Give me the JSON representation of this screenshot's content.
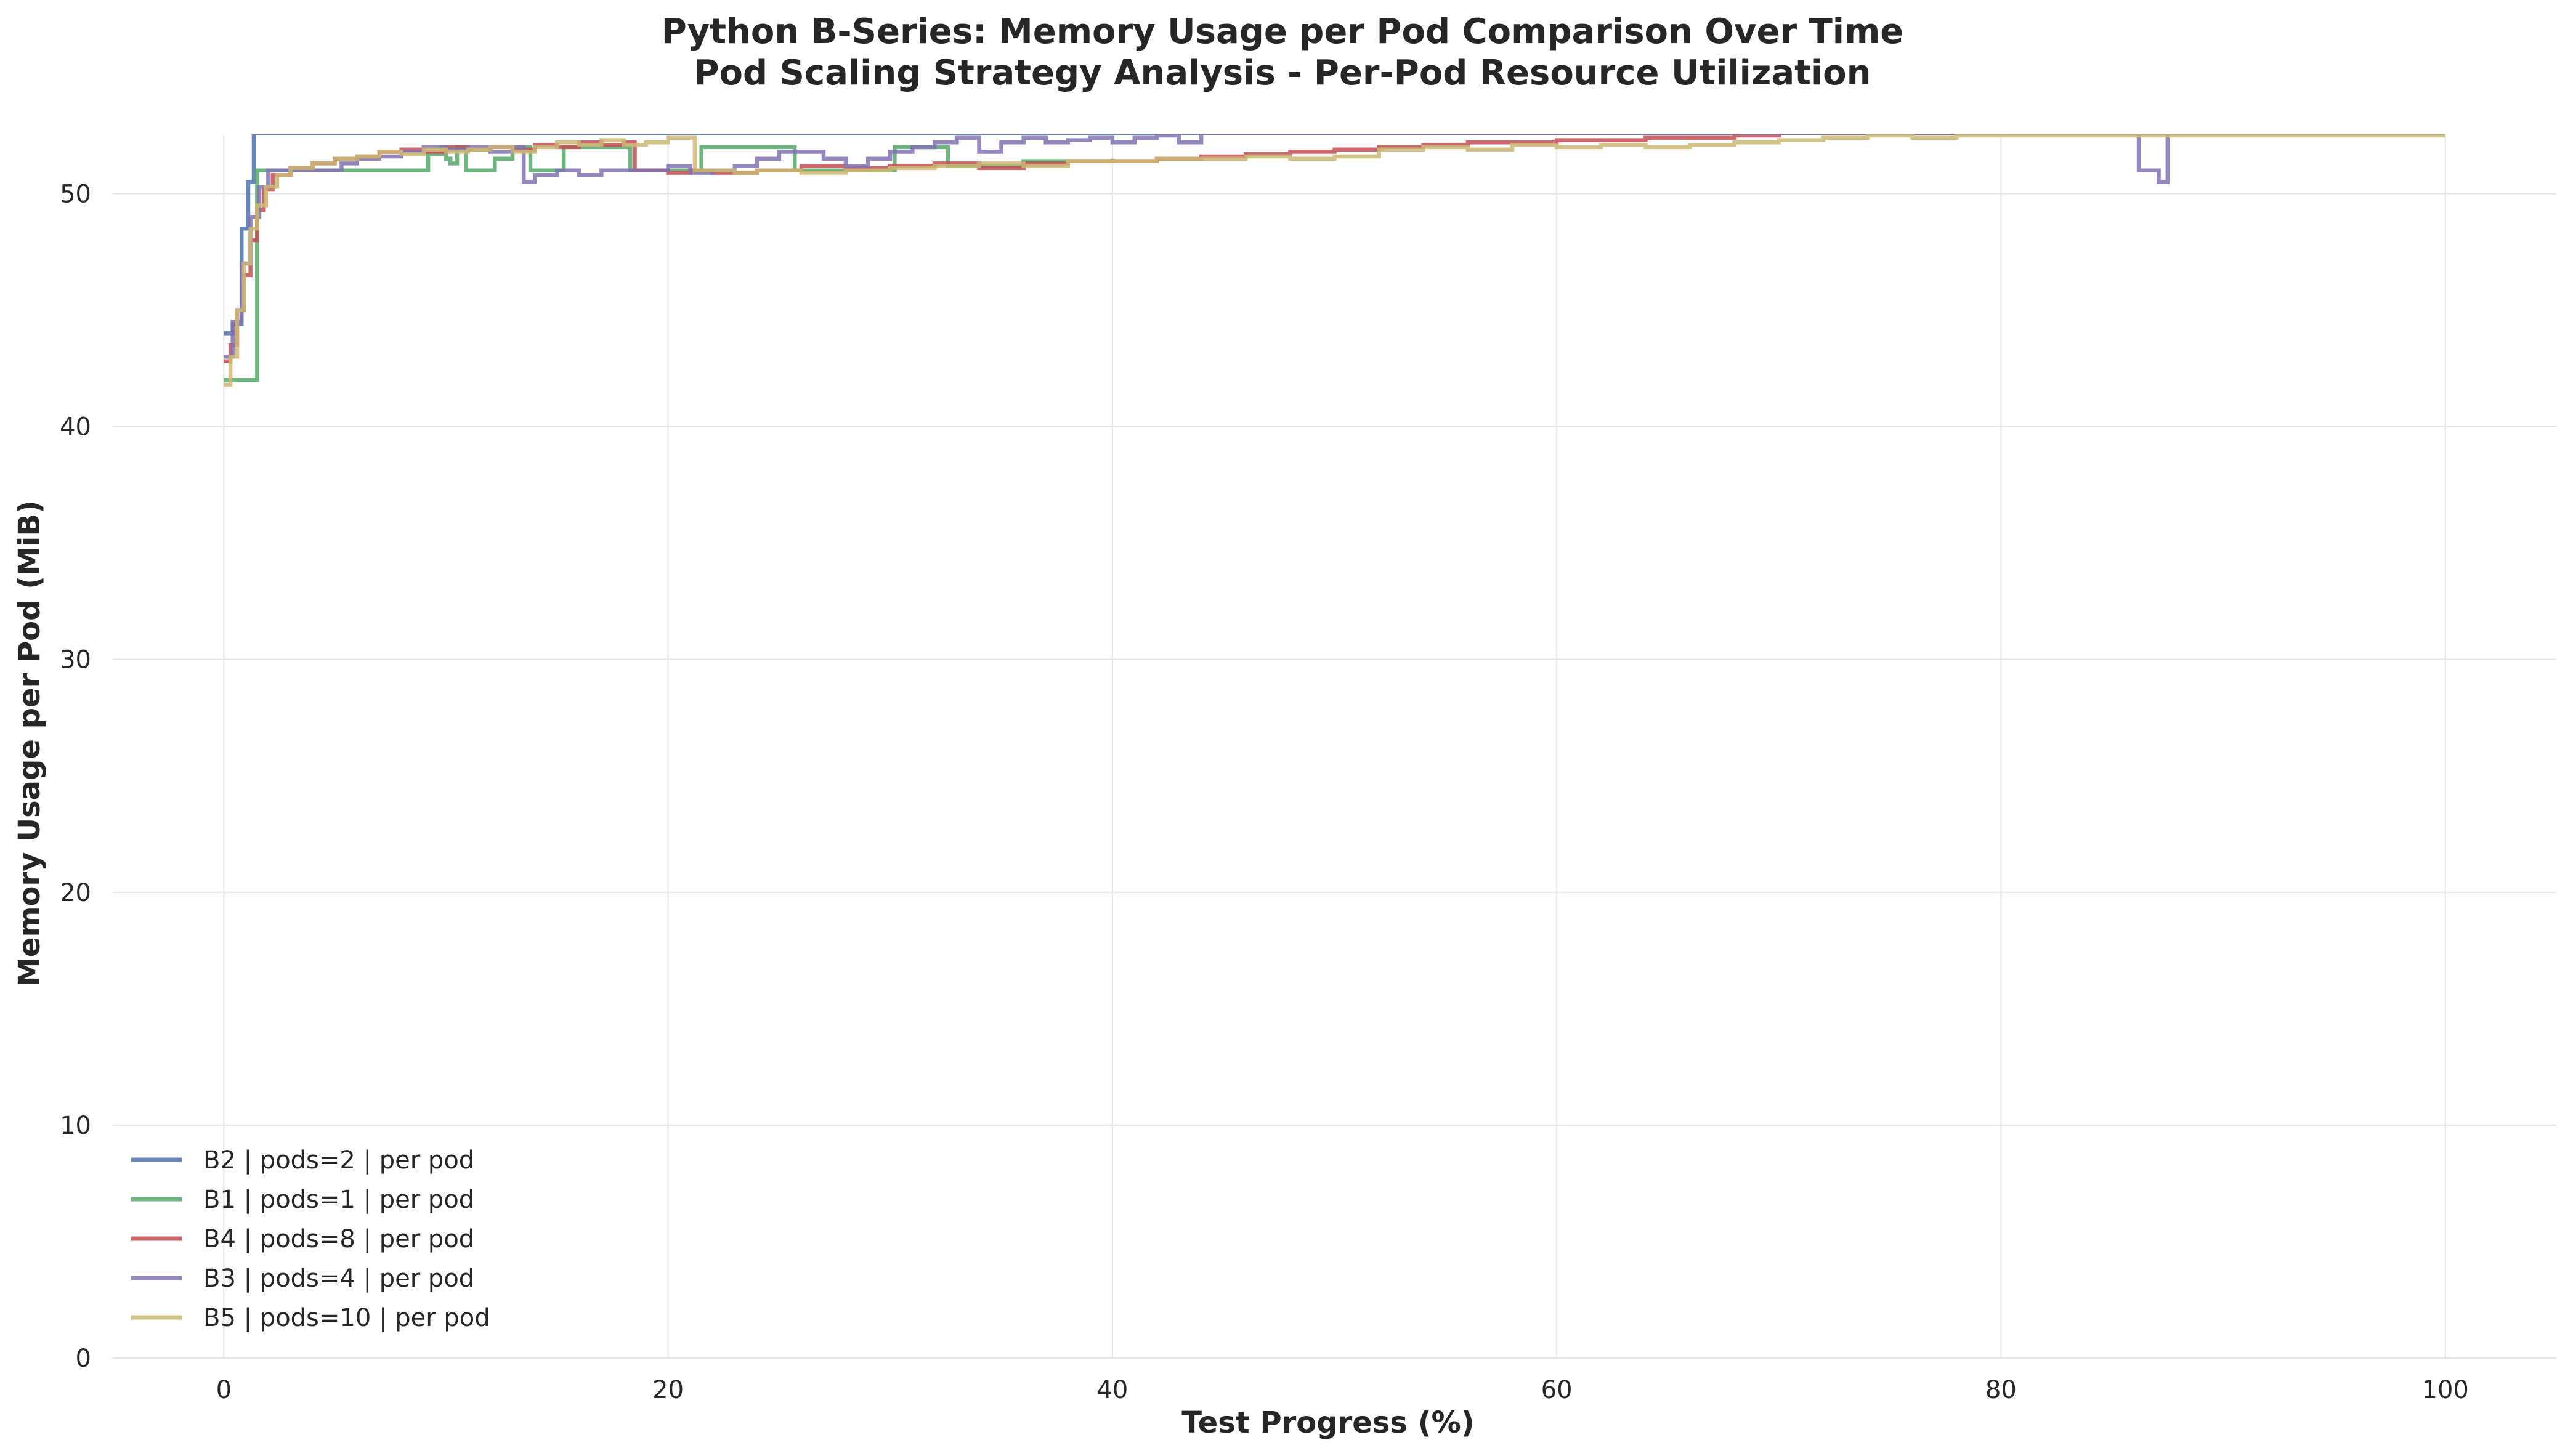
{
  "chart_data": {
    "type": "line",
    "title": "Python B-Series: Memory Usage per Pod Comparison Over Time",
    "subtitle": "Pod Scaling Strategy Analysis - Per-Pod Resource Utilization",
    "xlabel": "Test Progress (%)",
    "ylabel": "Memory Usage per Pod (MiB)",
    "xlim": [
      -5,
      105
    ],
    "ylim": [
      0,
      52.5
    ],
    "xticks": [
      0,
      20,
      40,
      60,
      80,
      100
    ],
    "yticks": [
      0,
      10,
      20,
      30,
      40,
      50
    ],
    "grid": true,
    "legend_position": "lower-left",
    "step_lines": true,
    "series": [
      {
        "name": "B2 | pods=2 | per pod",
        "color": "#4c72b0",
        "points": [
          [
            0,
            44
          ],
          [
            0.4,
            44.4
          ],
          [
            0.8,
            48.5
          ],
          [
            1.1,
            50.5
          ],
          [
            1.35,
            52.6
          ],
          [
            100,
            52.6
          ]
        ]
      },
      {
        "name": "B1 | pods=1 | per pod",
        "color": "#55a868",
        "points": [
          [
            0,
            42
          ],
          [
            1.4,
            42
          ],
          [
            1.5,
            51
          ],
          [
            8.5,
            51
          ],
          [
            9.2,
            51.7
          ],
          [
            9.8,
            52
          ],
          [
            10,
            51.5
          ],
          [
            10.2,
            51.3
          ],
          [
            10.5,
            52
          ],
          [
            10.8,
            52
          ],
          [
            10.9,
            51
          ],
          [
            12,
            51
          ],
          [
            12.2,
            51.5
          ],
          [
            13,
            52
          ],
          [
            13.5,
            52
          ],
          [
            13.8,
            51
          ],
          [
            15,
            51
          ],
          [
            15.3,
            52
          ],
          [
            18,
            52
          ],
          [
            18.3,
            51
          ],
          [
            21.3,
            51
          ],
          [
            21.5,
            52
          ],
          [
            25.5,
            52
          ],
          [
            25.7,
            51
          ],
          [
            30,
            51
          ],
          [
            30.2,
            52
          ],
          [
            32.5,
            52
          ],
          [
            32.6,
            51.2
          ],
          [
            34,
            51.2
          ],
          [
            36,
            51.4
          ],
          [
            38,
            51.4
          ],
          [
            40,
            51.5
          ]
        ]
      },
      {
        "name": "B4 | pods=8 | per pod",
        "color": "#c44e52",
        "points": [
          [
            0,
            42.8
          ],
          [
            0.3,
            43.5
          ],
          [
            0.6,
            45
          ],
          [
            0.9,
            46.5
          ],
          [
            1.2,
            48
          ],
          [
            1.5,
            49.3
          ],
          [
            1.8,
            50.2
          ],
          [
            2.2,
            50.8
          ],
          [
            3,
            51.1
          ],
          [
            4,
            51.3
          ],
          [
            5,
            51.5
          ],
          [
            6,
            51.6
          ],
          [
            7,
            51.8
          ],
          [
            8,
            51.9
          ],
          [
            9,
            51.8
          ],
          [
            10,
            52
          ],
          [
            11,
            51.9
          ],
          [
            12,
            52
          ],
          [
            13,
            51.9
          ],
          [
            14,
            52.1
          ],
          [
            15,
            52
          ],
          [
            16,
            52.2
          ],
          [
            17,
            52.1
          ],
          [
            18,
            52.2
          ],
          [
            18.5,
            51
          ],
          [
            20,
            50.9
          ],
          [
            21,
            51
          ],
          [
            22,
            50.9
          ],
          [
            24,
            51
          ],
          [
            26,
            51.2
          ],
          [
            28,
            51.1
          ],
          [
            30,
            51.2
          ],
          [
            32,
            51.3
          ],
          [
            34,
            51.1
          ],
          [
            36,
            51.3
          ],
          [
            38,
            51.4
          ],
          [
            40,
            51.4
          ],
          [
            42,
            51.5
          ],
          [
            44,
            51.6
          ],
          [
            46,
            51.7
          ],
          [
            48,
            51.8
          ],
          [
            50,
            51.9
          ],
          [
            52,
            52
          ],
          [
            54,
            52.1
          ],
          [
            56,
            52.2
          ],
          [
            58,
            52.2
          ],
          [
            60,
            52.3
          ],
          [
            62,
            52.3
          ],
          [
            64,
            52.4
          ],
          [
            66,
            52.4
          ],
          [
            68,
            52.5
          ],
          [
            70,
            52.6
          ],
          [
            100,
            52.6
          ]
        ]
      },
      {
        "name": "B3 | pods=4 | per pod",
        "color": "#8172b2",
        "points": [
          [
            0,
            43
          ],
          [
            0.4,
            44.5
          ],
          [
            0.8,
            47
          ],
          [
            1.2,
            49
          ],
          [
            1.6,
            50.3
          ],
          [
            2,
            51
          ],
          [
            5,
            51
          ],
          [
            5.3,
            51.3
          ],
          [
            6,
            51.5
          ],
          [
            7,
            51.6
          ],
          [
            8,
            51.8
          ],
          [
            9,
            52
          ],
          [
            10,
            51.9
          ],
          [
            11,
            52
          ],
          [
            12,
            51.8
          ],
          [
            13,
            52
          ],
          [
            13.5,
            50.5
          ],
          [
            14,
            50.8
          ],
          [
            15,
            51
          ],
          [
            16,
            50.8
          ],
          [
            17,
            51
          ],
          [
            18,
            51
          ],
          [
            19,
            51
          ],
          [
            20,
            51.2
          ],
          [
            21,
            50.9
          ],
          [
            22,
            51
          ],
          [
            23,
            51.2
          ],
          [
            24,
            51.5
          ],
          [
            25,
            51.8
          ],
          [
            26,
            51.8
          ],
          [
            27,
            51.5
          ],
          [
            28,
            51.2
          ],
          [
            29,
            51.5
          ],
          [
            30,
            51.8
          ],
          [
            31,
            52
          ],
          [
            32,
            52.2
          ],
          [
            33,
            52.4
          ],
          [
            34,
            51.8
          ],
          [
            35,
            52.2
          ],
          [
            36,
            52.4
          ],
          [
            37,
            52.2
          ],
          [
            38,
            52.3
          ],
          [
            39,
            52.4
          ],
          [
            40,
            52.2
          ],
          [
            41,
            52.4
          ],
          [
            42,
            52.5
          ],
          [
            43,
            52.2
          ],
          [
            44,
            52.6
          ],
          [
            86,
            52.6
          ],
          [
            86.2,
            51
          ],
          [
            87,
            51
          ],
          [
            87.1,
            50.5
          ],
          [
            87.4,
            50.5
          ],
          [
            87.5,
            52.6
          ],
          [
            100,
            52.6
          ]
        ]
      },
      {
        "name": "B5 | pods=10 | per pod",
        "color": "#ccb974",
        "points": [
          [
            0,
            41.8
          ],
          [
            0.3,
            43
          ],
          [
            0.6,
            45
          ],
          [
            0.9,
            47
          ],
          [
            1.2,
            48.5
          ],
          [
            1.5,
            49.5
          ],
          [
            1.9,
            50.3
          ],
          [
            2.4,
            50.8
          ],
          [
            3,
            51.1
          ],
          [
            4,
            51.3
          ],
          [
            5,
            51.5
          ],
          [
            6,
            51.6
          ],
          [
            7,
            51.8
          ],
          [
            8,
            51.7
          ],
          [
            9,
            51.9
          ],
          [
            10,
            51.8
          ],
          [
            11,
            51.9
          ],
          [
            12,
            52
          ],
          [
            13,
            51.8
          ],
          [
            14,
            52
          ],
          [
            15,
            52.2
          ],
          [
            16,
            52.1
          ],
          [
            17,
            52.3
          ],
          [
            18,
            52.1
          ],
          [
            19,
            52.2
          ],
          [
            20,
            52.4
          ],
          [
            21,
            52.4
          ],
          [
            21.2,
            51
          ],
          [
            22,
            51
          ],
          [
            23,
            50.9
          ],
          [
            24,
            51
          ],
          [
            26,
            50.9
          ],
          [
            28,
            51
          ],
          [
            30,
            51.1
          ],
          [
            32,
            51.2
          ],
          [
            34,
            51.3
          ],
          [
            36,
            51.2
          ],
          [
            38,
            51.4
          ],
          [
            40,
            51.4
          ],
          [
            42,
            51.5
          ],
          [
            44,
            51.5
          ],
          [
            46,
            51.6
          ],
          [
            48,
            51.5
          ],
          [
            50,
            51.6
          ],
          [
            52,
            51.9
          ],
          [
            54,
            52
          ],
          [
            56,
            51.9
          ],
          [
            58,
            52.1
          ],
          [
            60,
            52
          ],
          [
            62,
            52.1
          ],
          [
            64,
            52
          ],
          [
            66,
            52.1
          ],
          [
            68,
            52.2
          ],
          [
            70,
            52.3
          ],
          [
            72,
            52.4
          ],
          [
            74,
            52.5
          ],
          [
            76,
            52.4
          ],
          [
            78,
            52.5
          ],
          [
            80,
            52.5
          ],
          [
            100,
            52.5
          ]
        ]
      }
    ]
  }
}
